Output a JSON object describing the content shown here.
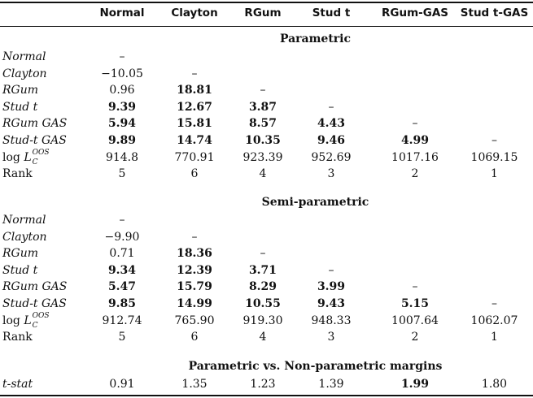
{
  "header": {
    "columns": [
      "Normal",
      "Clayton",
      "RGum",
      "Stud t",
      "RGum-GAS",
      "Stud t-GAS"
    ]
  },
  "sections": [
    {
      "title": "Parametric",
      "rows": [
        {
          "label": "Normal",
          "cells": [
            "–",
            "",
            "",
            "",
            "",
            ""
          ],
          "bold": [
            false,
            false,
            false,
            false,
            false,
            false
          ]
        },
        {
          "label": "Clayton",
          "cells": [
            "−10.05",
            "–",
            "",
            "",
            "",
            ""
          ],
          "bold": [
            false,
            false,
            false,
            false,
            false,
            false
          ]
        },
        {
          "label": "RGum",
          "cells": [
            "0.96",
            "18.81",
            "–",
            "",
            "",
            ""
          ],
          "bold": [
            false,
            true,
            false,
            false,
            false,
            false
          ]
        },
        {
          "label": "Stud t",
          "cells": [
            "9.39",
            "12.67",
            "3.87",
            "–",
            "",
            ""
          ],
          "bold": [
            true,
            true,
            true,
            false,
            false,
            false
          ]
        },
        {
          "label": "RGum GAS",
          "cells": [
            "5.94",
            "15.81",
            "8.57",
            "4.43",
            "–",
            ""
          ],
          "bold": [
            true,
            true,
            true,
            true,
            false,
            false
          ]
        },
        {
          "label": "Stud-t GAS",
          "cells": [
            "9.89",
            "14.74",
            "10.35",
            "9.46",
            "4.99",
            "–"
          ],
          "bold": [
            true,
            true,
            true,
            true,
            true,
            false
          ]
        }
      ],
      "loglik": {
        "log": "log",
        "L": "L",
        "sup": "OOS",
        "sub": "C",
        "cells": [
          "914.8",
          "770.91",
          "923.39",
          "952.69",
          "1017.16",
          "1069.15"
        ]
      },
      "rank": {
        "label": "Rank",
        "cells": [
          "5",
          "6",
          "4",
          "3",
          "2",
          "1"
        ]
      }
    },
    {
      "title": "Semi-parametric",
      "rows": [
        {
          "label": "Normal",
          "cells": [
            "–",
            "",
            "",
            "",
            "",
            ""
          ],
          "bold": [
            false,
            false,
            false,
            false,
            false,
            false
          ]
        },
        {
          "label": "Clayton",
          "cells": [
            "−9.90",
            "–",
            "",
            "",
            "",
            ""
          ],
          "bold": [
            false,
            false,
            false,
            false,
            false,
            false
          ]
        },
        {
          "label": "RGum",
          "cells": [
            "0.71",
            "18.36",
            "–",
            "",
            "",
            ""
          ],
          "bold": [
            false,
            true,
            false,
            false,
            false,
            false
          ]
        },
        {
          "label": "Stud t",
          "cells": [
            "9.34",
            "12.39",
            "3.71",
            "–",
            "",
            ""
          ],
          "bold": [
            true,
            true,
            true,
            false,
            false,
            false
          ]
        },
        {
          "label": "RGum GAS",
          "cells": [
            "5.47",
            "15.79",
            "8.29",
            "3.99",
            "–",
            ""
          ],
          "bold": [
            true,
            true,
            true,
            true,
            false,
            false
          ]
        },
        {
          "label": "Stud-t GAS",
          "cells": [
            "9.85",
            "14.99",
            "10.55",
            "9.43",
            "5.15",
            "–"
          ],
          "bold": [
            true,
            true,
            true,
            true,
            true,
            false
          ]
        }
      ],
      "loglik": {
        "log": "log",
        "L": "L",
        "sup": "OOS",
        "sub": "C",
        "cells": [
          "912.74",
          "765.90",
          "919.30",
          "948.33",
          "1007.64",
          "1062.07"
        ]
      },
      "rank": {
        "label": "Rank",
        "cells": [
          "5",
          "6",
          "4",
          "3",
          "2",
          "1"
        ]
      }
    },
    {
      "title": "Parametric vs. Non-parametric margins",
      "rows": [
        {
          "label": "t-stat",
          "cells": [
            "0.91",
            "1.35",
            "1.23",
            "1.39",
            "1.99",
            "1.80"
          ],
          "bold": [
            false,
            false,
            false,
            false,
            true,
            false
          ]
        }
      ]
    }
  ]
}
